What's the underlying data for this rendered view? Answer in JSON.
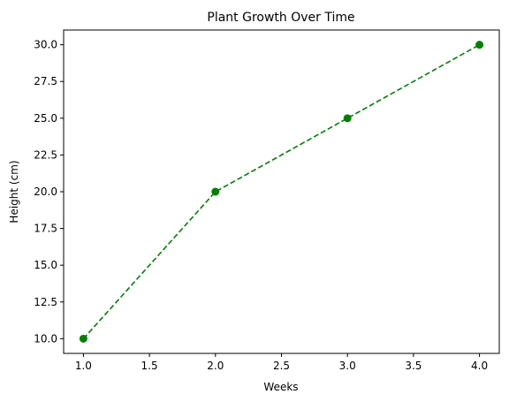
{
  "chart_data": {
    "type": "line",
    "title": "Plant Growth Over Time",
    "xlabel": "Weeks",
    "ylabel": "Height (cm)",
    "xlim": [
      0.85,
      4.15
    ],
    "ylim": [
      9.0,
      31.0
    ],
    "x_ticks": [
      "1.0",
      "1.5",
      "2.0",
      "2.5",
      "3.0",
      "3.5",
      "4.0"
    ],
    "y_ticks": [
      "10.0",
      "12.5",
      "15.0",
      "17.5",
      "20.0",
      "22.5",
      "25.0",
      "27.5",
      "30.0"
    ],
    "grid": false,
    "line_style": "dashed",
    "marker": "circle",
    "color": "#008000",
    "series": [
      {
        "x": [
          1,
          2,
          3,
          4
        ],
        "values": [
          10,
          20,
          25,
          30
        ]
      }
    ]
  }
}
